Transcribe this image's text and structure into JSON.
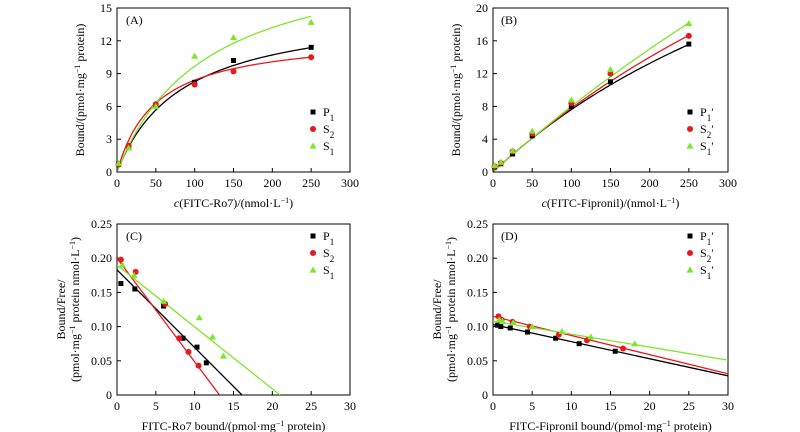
{
  "figure": {
    "panels": [
      "A",
      "B",
      "C",
      "D"
    ]
  },
  "colors": {
    "P": "#000000",
    "S2": "#e8191c",
    "S1": "#7ee62a"
  },
  "chart_data": [
    {
      "id": "A",
      "type": "scatter",
      "panel_tag": "(A)",
      "xlabel_html": "c(FITC-Ro7)/(nmol·L⁻¹)",
      "xlabel_italic": "c",
      "xlabel_rest": "(FITC-Ro7)/(nmol·L",
      "xlabel_sup": "−1",
      "xlabel_tail": ")",
      "ylabel_main": "Bound/(pmol·mg",
      "ylabel_sup": "−1",
      "ylabel_tail": " protein)",
      "xlim": [
        0,
        300
      ],
      "ylim": [
        0,
        15
      ],
      "xticks": [
        0,
        50,
        100,
        150,
        200,
        250,
        300
      ],
      "yticks": [
        0,
        3,
        6,
        9,
        12,
        15
      ],
      "fit": "hyperbola",
      "series": [
        {
          "key": "P",
          "label_base": "P",
          "label_sub": "1",
          "label_prime": "",
          "marker": "square",
          "x": [
            2,
            15,
            50,
            100,
            150,
            250
          ],
          "y": [
            0.7,
            2.3,
            6.1,
            8.2,
            10.2,
            11.4
          ],
          "Bmax": 15.2,
          "Kd": 84
        },
        {
          "key": "S2",
          "label_base": "S",
          "label_sub": "2",
          "label_prime": "",
          "marker": "circle",
          "x": [
            2,
            15,
            50,
            100,
            150,
            250
          ],
          "y": [
            0.7,
            2.4,
            6.2,
            8.0,
            9.2,
            10.5
          ],
          "Bmax": 12.6,
          "Kd": 50
        },
        {
          "key": "S1",
          "label_base": "S",
          "label_sub": "1",
          "label_prime": "",
          "marker": "triangle",
          "x": [
            2,
            15,
            50,
            100,
            150,
            250
          ],
          "y": [
            0.8,
            2.2,
            6.0,
            10.6,
            12.3,
            13.7
          ],
          "Bmax": 20.8,
          "Kd": 115
        }
      ]
    },
    {
      "id": "B",
      "type": "scatter",
      "panel_tag": "(B)",
      "xlabel_italic": "c",
      "xlabel_rest": "(FITC-Fipronil)/(nmol·L",
      "xlabel_sup": "−1",
      "xlabel_tail": ")",
      "ylabel_main": "Bound/(pmol·mg",
      "ylabel_sup": "−1",
      "ylabel_tail": " protein)",
      "xlim": [
        0,
        300
      ],
      "ylim": [
        0,
        20
      ],
      "xticks": [
        0,
        50,
        100,
        150,
        200,
        250,
        300
      ],
      "yticks": [
        0,
        4,
        8,
        12,
        16,
        20
      ],
      "fit": "hyperbola",
      "series": [
        {
          "key": "P",
          "label_base": "P",
          "label_sub": "1",
          "label_prime": "′",
          "marker": "square",
          "x": [
            2,
            10,
            25,
            50,
            100,
            150,
            250
          ],
          "y": [
            0.6,
            1.0,
            2.2,
            4.4,
            8.0,
            11.0,
            15.6
          ],
          "Bmax": 51,
          "Kd": 570
        },
        {
          "key": "S2",
          "label_base": "S",
          "label_sub": "2",
          "label_prime": "′",
          "marker": "circle",
          "x": [
            2,
            10,
            25,
            50,
            100,
            150,
            250
          ],
          "y": [
            0.7,
            1.1,
            2.5,
            4.7,
            8.4,
            12.0,
            16.6
          ],
          "Bmax": 70,
          "Kd": 800
        },
        {
          "key": "S1",
          "label_base": "S",
          "label_sub": "1",
          "label_prime": "′",
          "marker": "triangle",
          "x": [
            2,
            10,
            25,
            50,
            100,
            150,
            250
          ],
          "y": [
            0.8,
            1.2,
            2.6,
            5.0,
            8.8,
            12.5,
            18.1
          ],
          "Bmax": 120,
          "Kd": 1400
        }
      ]
    },
    {
      "id": "C",
      "type": "scatter",
      "panel_tag": "(C)",
      "xlabel_plain": "FITC-Ro7 bound/(pmol·mg",
      "xlabel_sup": "−1",
      "xlabel_tail": " protein)",
      "ylabel_line1": "Bound/Free/",
      "ylabel_main": "(pmol·mg",
      "ylabel_sup": "−1",
      "ylabel_mid": " protein nmol·L",
      "ylabel_sup2": "−1",
      "ylabel_tail": ")",
      "xlim": [
        0,
        30
      ],
      "ylim": [
        0,
        0.25
      ],
      "xticks": [
        0,
        5,
        10,
        15,
        20,
        25,
        30
      ],
      "yticks": [
        0,
        0.05,
        0.1,
        0.15,
        0.2,
        0.25
      ],
      "ytick_labels": [
        "0",
        "0.05",
        "0.10",
        "0.15",
        "0.20",
        "0.25"
      ],
      "fit": "linear",
      "series": [
        {
          "key": "P",
          "label_base": "P",
          "label_sub": "1",
          "label_prime": "",
          "marker": "square",
          "x": [
            0.5,
            2.3,
            6.0,
            8.5,
            10.3,
            11.5
          ],
          "y": [
            0.163,
            0.155,
            0.13,
            0.083,
            0.07,
            0.047
          ],
          "intercept": 0.183,
          "slope": -0.01137
        },
        {
          "key": "S2",
          "label_base": "S",
          "label_sub": "2",
          "label_prime": "",
          "marker": "circle",
          "x": [
            0.5,
            2.4,
            6.2,
            8.0,
            9.2,
            10.5
          ],
          "y": [
            0.198,
            0.18,
            0.133,
            0.083,
            0.063,
            0.043
          ],
          "intercept": 0.2,
          "slope": -0.01515
        },
        {
          "key": "S1",
          "label_base": "S",
          "label_sub": "1",
          "label_prime": "",
          "marker": "triangle",
          "x": [
            0.7,
            2.2,
            6.0,
            10.6,
            12.3,
            13.7
          ],
          "y": [
            0.19,
            0.175,
            0.137,
            0.113,
            0.085,
            0.057
          ],
          "intercept": 0.19,
          "slope": -0.00905
        }
      ]
    },
    {
      "id": "D",
      "type": "scatter",
      "panel_tag": "(D)",
      "xlabel_plain": "FITC-Fipronil bound/(pmol·mg",
      "xlabel_sup": "−1",
      "xlabel_tail": " protein)",
      "ylabel_line1": "Bound/Free/",
      "ylabel_main": "(pmol·mg",
      "ylabel_sup": "−1",
      "ylabel_mid": " protein nmol·L",
      "ylabel_sup2": "−1",
      "ylabel_tail": ")",
      "xlim": [
        0,
        30
      ],
      "ylim": [
        0,
        0.25
      ],
      "xticks": [
        0,
        5,
        10,
        15,
        20,
        25,
        30
      ],
      "yticks": [
        0,
        0.05,
        0.1,
        0.15,
        0.2,
        0.25
      ],
      "ytick_labels": [
        "0",
        "0.05",
        "0.10",
        "0.15",
        "0.20",
        "0.25"
      ],
      "fit": "linear",
      "series": [
        {
          "key": "P",
          "label_base": "P",
          "label_sub": "1",
          "label_prime": "′",
          "marker": "square",
          "x": [
            0.6,
            1.0,
            2.2,
            4.4,
            8.0,
            11.0,
            15.6
          ],
          "y": [
            0.102,
            0.1,
            0.098,
            0.092,
            0.083,
            0.075,
            0.064
          ],
          "intercept": 0.103,
          "slope": -0.0025
        },
        {
          "key": "S2",
          "label_base": "S",
          "label_sub": "2",
          "label_prime": "′",
          "marker": "circle",
          "x": [
            0.7,
            1.1,
            2.5,
            4.7,
            8.4,
            12.0,
            16.6
          ],
          "y": [
            0.115,
            0.11,
            0.107,
            0.1,
            0.088,
            0.08,
            0.068
          ],
          "intercept": 0.115,
          "slope": -0.0028
        },
        {
          "key": "S1",
          "label_base": "S",
          "label_sub": "1",
          "label_prime": "′",
          "marker": "triangle",
          "x": [
            0.8,
            1.2,
            2.6,
            5.0,
            8.8,
            12.5,
            18.1
          ],
          "y": [
            0.11,
            0.108,
            0.106,
            0.1,
            0.093,
            0.085,
            0.075
          ],
          "intercept": 0.108,
          "slope": -0.0019
        }
      ]
    }
  ]
}
